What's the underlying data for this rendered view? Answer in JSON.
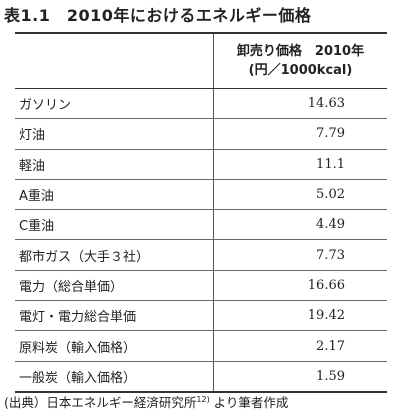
{
  "title": "表1.1　2010年におけるエネルギー価格",
  "table": {
    "header": [
      "卸売り価格　2010年",
      "(円／1000kcal)"
    ],
    "rows": [
      [
        "ガソリン",
        "14.63"
      ],
      [
        "灯油",
        "7.79"
      ],
      [
        "軽油",
        "11.1"
      ],
      [
        "A重油",
        "5.02"
      ],
      [
        "C重油",
        "4.49"
      ],
      [
        "都市ガス（大手３社）",
        "7.73"
      ],
      [
        "電力（総合単価）",
        "16.66"
      ],
      [
        "電灯・電力総合単価",
        "19.42"
      ],
      [
        "原料炭（輸入価格）",
        "2.17"
      ],
      [
        "一般炭（輸入価格）",
        "1.59"
      ]
    ]
  },
  "footnote": {
    "text": "(出典）日本エネルギー経済研究所",
    "ref": "12)",
    "tail": " より筆者作成"
  }
}
